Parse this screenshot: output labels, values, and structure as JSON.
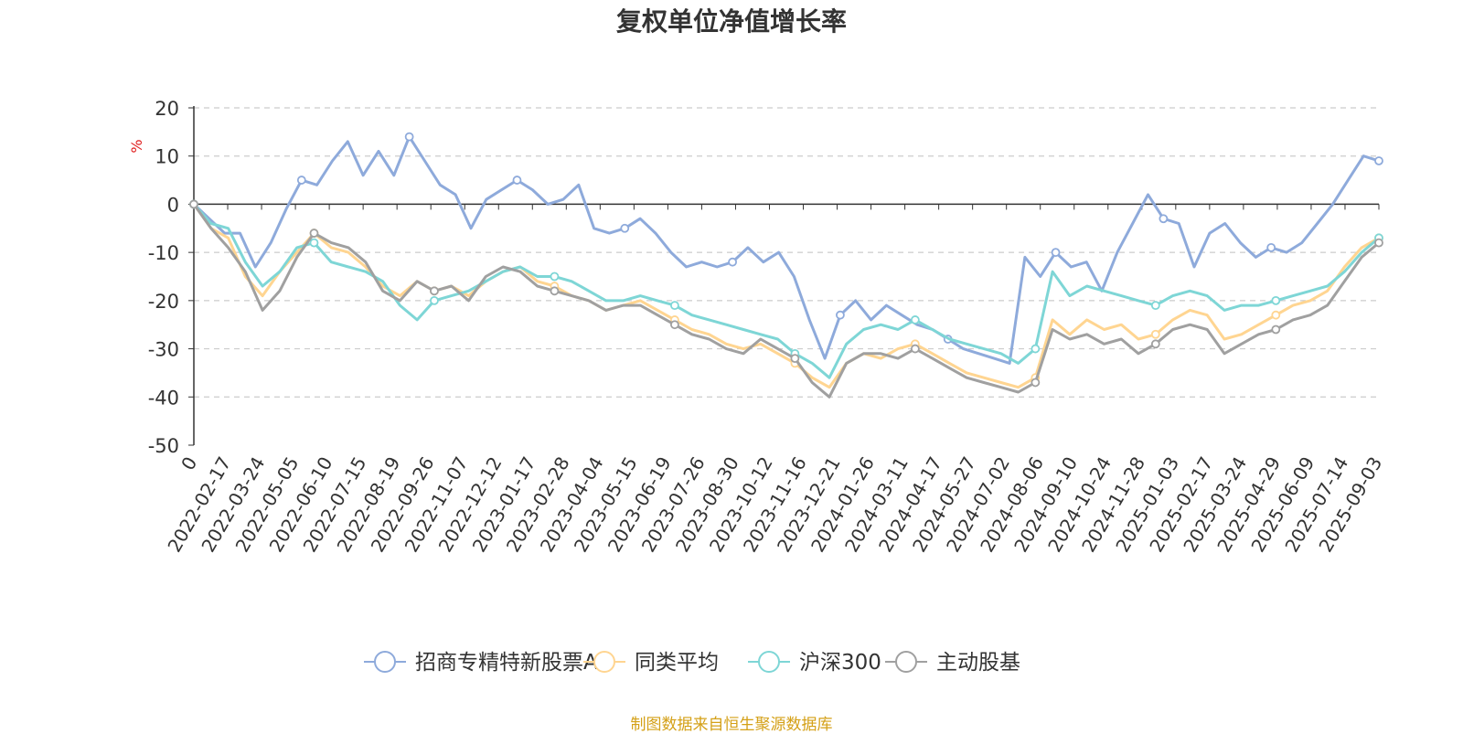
{
  "title": "复权单位净值增长率",
  "footer": "制图数据来自恒生聚源数据库",
  "chart_data": {
    "type": "line",
    "ylabel": "%",
    "ylim": [
      -50,
      20
    ],
    "yticks": [
      20,
      10,
      0,
      -10,
      -20,
      -30,
      -40,
      -50
    ],
    "xticks": [
      "0",
      "2022-02-17",
      "2022-03-24",
      "2022-05-05",
      "2022-06-10",
      "2022-07-15",
      "2022-08-19",
      "2022-09-26",
      "2022-11-07",
      "2022-12-12",
      "2023-01-17",
      "2023-02-28",
      "2023-04-04",
      "2023-05-15",
      "2023-06-19",
      "2023-07-26",
      "2023-08-30",
      "2023-10-12",
      "2023-11-16",
      "2023-12-21",
      "2024-01-26",
      "2024-03-11",
      "2024-04-17",
      "2024-05-27",
      "2024-07-02",
      "2024-08-06",
      "2024-09-10",
      "2024-10-24",
      "2024-11-28",
      "2025-01-03",
      "2025-02-17",
      "2025-03-24",
      "2025-04-29",
      "2025-06-09",
      "2025-07-14",
      "2025-09-03"
    ],
    "legend_position": "bottom",
    "grid": "horizontal dashed",
    "series": [
      {
        "name": "招商专精特新股票A",
        "color": "#8eaadb",
        "values": [
          0,
          -3,
          -6,
          -6,
          -13,
          -8,
          -1,
          5,
          4,
          9,
          13,
          6,
          11,
          6,
          14,
          9,
          4,
          2,
          -5,
          1,
          3,
          5,
          3,
          0,
          1,
          4,
          -5,
          -6,
          -5,
          -3,
          -6,
          -10,
          -13,
          -12,
          -13,
          -12,
          -9,
          -12,
          -10,
          -15,
          -24,
          -32,
          -23,
          -20,
          -24,
          -21,
          -23,
          -25,
          -26,
          -28,
          -30,
          -31,
          -32,
          -33,
          -11,
          -15,
          -10,
          -13,
          -12,
          -18,
          -10,
          -4,
          2,
          -3,
          -4,
          -13,
          -6,
          -4,
          -8,
          -11,
          -9,
          -10,
          -8,
          -4,
          0,
          5,
          10,
          9
        ]
      },
      {
        "name": "同类平均",
        "color": "#ffd591",
        "values": [
          0,
          -5,
          -7,
          -15,
          -19,
          -14,
          -10,
          -6,
          -9,
          -10,
          -13,
          -17,
          -19,
          -16,
          -18,
          -17,
          -19,
          -16,
          -14,
          -13,
          -16,
          -17,
          -19,
          -20,
          -22,
          -21,
          -20,
          -22,
          -24,
          -26,
          -27,
          -29,
          -30,
          -29,
          -31,
          -33,
          -36,
          -38,
          -33,
          -31,
          -32,
          -30,
          -29,
          -31,
          -33,
          -35,
          -36,
          -37,
          -38,
          -36,
          -24,
          -27,
          -24,
          -26,
          -25,
          -28,
          -27,
          -24,
          -22,
          -23,
          -28,
          -27,
          -25,
          -23,
          -21,
          -20,
          -18,
          -13,
          -9,
          -7
        ]
      },
      {
        "name": "沪深300",
        "color": "#7ed6d6",
        "values": [
          0,
          -4,
          -5,
          -12,
          -17,
          -14,
          -9,
          -8,
          -12,
          -13,
          -14,
          -16,
          -21,
          -24,
          -20,
          -19,
          -18,
          -16,
          -14,
          -13,
          -15,
          -15,
          -16,
          -18,
          -20,
          -20,
          -19,
          -20,
          -21,
          -23,
          -24,
          -25,
          -26,
          -27,
          -28,
          -31,
          -33,
          -36,
          -29,
          -26,
          -25,
          -26,
          -24,
          -26,
          -28,
          -29,
          -30,
          -31,
          -33,
          -30,
          -14,
          -19,
          -17,
          -18,
          -19,
          -20,
          -21,
          -19,
          -18,
          -19,
          -22,
          -21,
          -21,
          -20,
          -19,
          -18,
          -17,
          -14,
          -10,
          -7
        ]
      },
      {
        "name": "主动股基",
        "color": "#a0a0a0",
        "values": [
          0,
          -5,
          -9,
          -14,
          -22,
          -18,
          -11,
          -6,
          -8,
          -9,
          -12,
          -18,
          -20,
          -16,
          -18,
          -17,
          -20,
          -15,
          -13,
          -14,
          -17,
          -18,
          -19,
          -20,
          -22,
          -21,
          -21,
          -23,
          -25,
          -27,
          -28,
          -30,
          -31,
          -28,
          -30,
          -32,
          -37,
          -40,
          -33,
          -31,
          -31,
          -32,
          -30,
          -32,
          -34,
          -36,
          -37,
          -38,
          -39,
          -37,
          -26,
          -28,
          -27,
          -29,
          -28,
          -31,
          -29,
          -26,
          -25,
          -26,
          -31,
          -29,
          -27,
          -26,
          -24,
          -23,
          -21,
          -16,
          -11,
          -8
        ]
      }
    ]
  }
}
